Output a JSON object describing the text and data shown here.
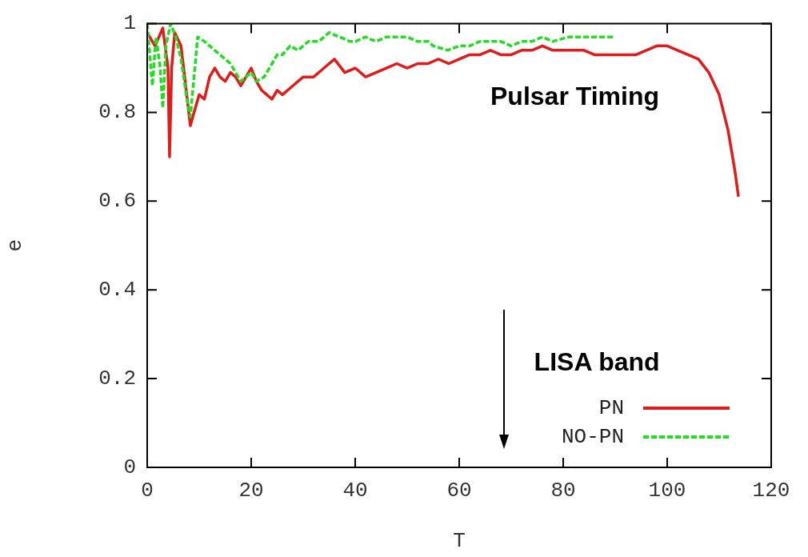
{
  "chart_data": {
    "type": "line",
    "xlabel": "T",
    "ylabel": "e",
    "xlim": [
      0,
      120
    ],
    "ylim": [
      0,
      1
    ],
    "xticks": [
      0,
      20,
      40,
      60,
      80,
      100,
      120
    ],
    "yticks": [
      0,
      0.2,
      0.4,
      0.6,
      0.8,
      1
    ],
    "legend": "bottom right",
    "marker": "none",
    "annotations": [
      "Pulsar Timing",
      "LISA band"
    ],
    "series": [
      {
        "name": "PN",
        "color": "#e31a1a",
        "line_style": "solid",
        "x": [
          0,
          1.5,
          3,
          4,
          4.3,
          4.7,
          5.3,
          6.5,
          7.5,
          8.3,
          9,
          10,
          11,
          12,
          13,
          14,
          15,
          16,
          17,
          18,
          19,
          20,
          21,
          22,
          23,
          24,
          25,
          26,
          28,
          30,
          32,
          34,
          36,
          38,
          40,
          42,
          44,
          46,
          48,
          50,
          52,
          54,
          56,
          58,
          60,
          62,
          64,
          66,
          68,
          70,
          72,
          74,
          76,
          78,
          80,
          82,
          84,
          86,
          88,
          90,
          92,
          94,
          96,
          98,
          99,
          100,
          102,
          104,
          106,
          108,
          110,
          111.7,
          113,
          113.7
        ],
        "values": [
          0.98,
          0.95,
          0.99,
          0.9,
          0.7,
          0.9,
          0.98,
          0.95,
          0.85,
          0.77,
          0.8,
          0.84,
          0.83,
          0.88,
          0.9,
          0.88,
          0.87,
          0.89,
          0.88,
          0.86,
          0.88,
          0.9,
          0.87,
          0.85,
          0.84,
          0.83,
          0.85,
          0.84,
          0.86,
          0.88,
          0.88,
          0.9,
          0.92,
          0.89,
          0.9,
          0.88,
          0.89,
          0.9,
          0.91,
          0.9,
          0.91,
          0.91,
          0.92,
          0.91,
          0.92,
          0.93,
          0.93,
          0.94,
          0.93,
          0.93,
          0.94,
          0.94,
          0.95,
          0.94,
          0.94,
          0.94,
          0.94,
          0.93,
          0.93,
          0.93,
          0.93,
          0.93,
          0.94,
          0.95,
          0.95,
          0.95,
          0.94,
          0.93,
          0.92,
          0.89,
          0.84,
          0.76,
          0.67,
          0.61
        ]
      },
      {
        "name": "NO-PN",
        "color": "#22dd22",
        "line_style": "dashed",
        "x": [
          0,
          0.5,
          1,
          1.7,
          2.5,
          3,
          3.6,
          4.5,
          5.5,
          6.5,
          7.5,
          8.3,
          9,
          9.7,
          11,
          12,
          13,
          14,
          15,
          16,
          17,
          18,
          19,
          20,
          21,
          22.5,
          24,
          25,
          26,
          27.5,
          29,
          31,
          33,
          35,
          37,
          39,
          40,
          42,
          44,
          46,
          48,
          50,
          52,
          54,
          55,
          57.8,
          60,
          62,
          64,
          66,
          68,
          70,
          72,
          74,
          76,
          78,
          81,
          84,
          86,
          88,
          89.7
        ],
        "values": [
          1,
          0.93,
          0.86,
          0.97,
          0.9,
          0.81,
          0.95,
          1,
          0.97,
          0.92,
          0.84,
          0.79,
          0.88,
          0.97,
          0.96,
          0.95,
          0.94,
          0.93,
          0.92,
          0.91,
          0.89,
          0.87,
          0.88,
          0.89,
          0.87,
          0.88,
          0.91,
          0.93,
          0.93,
          0.95,
          0.94,
          0.96,
          0.96,
          0.98,
          0.97,
          0.96,
          0.96,
          0.97,
          0.96,
          0.97,
          0.97,
          0.97,
          0.96,
          0.96,
          0.95,
          0.94,
          0.95,
          0.95,
          0.96,
          0.96,
          0.96,
          0.95,
          0.96,
          0.96,
          0.97,
          0.96,
          0.97,
          0.97,
          0.97,
          0.97,
          0.97
        ]
      }
    ]
  }
}
